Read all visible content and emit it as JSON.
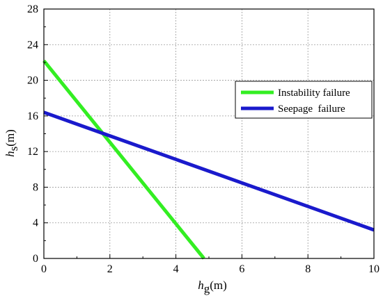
{
  "chart_data": {
    "type": "line",
    "xlabel": {
      "symbol": "h",
      "subscript": "g",
      "unit": "(m)"
    },
    "ylabel": {
      "symbol": "h",
      "subscript": "s",
      "unit": "(m)"
    },
    "xlim": [
      0,
      10
    ],
    "ylim": [
      0,
      28
    ],
    "xticks": [
      "0",
      "2",
      "4",
      "6",
      "8",
      "10"
    ],
    "yticks": [
      "0",
      "4",
      "8",
      "12",
      "16",
      "20",
      "24",
      "28"
    ],
    "grid": true,
    "legend_position": "right-middle",
    "series": [
      {
        "name": "Instability failure",
        "color": "#33ee22",
        "points": [
          [
            0,
            22.2
          ],
          [
            4.85,
            0
          ]
        ]
      },
      {
        "name": "Seepage  failure",
        "color": "#1a1acc",
        "points": [
          [
            0,
            16.4
          ],
          [
            10,
            3.2
          ]
        ]
      }
    ]
  }
}
